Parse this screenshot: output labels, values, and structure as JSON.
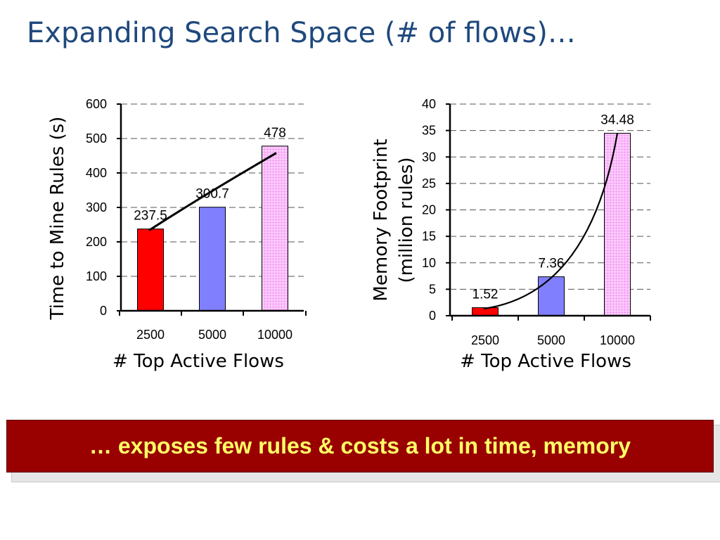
{
  "slide": {
    "title": "Expanding Search Space (# of flows)…",
    "banner": "… exposes few rules & costs a lot in time, memory"
  },
  "chart_data": [
    {
      "type": "bar",
      "categories": [
        "2500",
        "5000",
        "10000"
      ],
      "values": [
        237.5,
        300.7,
        478
      ],
      "data_labels": [
        "237.5",
        "300.7",
        "478"
      ],
      "xlabel": "# Top Active Flows",
      "ylabel": "Time to Mine Rules (s)",
      "ylim": [
        0,
        600
      ],
      "yticks": [
        "0",
        "100",
        "200",
        "300",
        "400",
        "500",
        "600"
      ],
      "grid": "horizontal dashed",
      "bar_colors": [
        "#ff0000",
        "#8080ff",
        "#ffccff"
      ],
      "trend_line": true
    },
    {
      "type": "bar",
      "categories": [
        "2500",
        "5000",
        "10000"
      ],
      "values": [
        1.52,
        7.36,
        34.48
      ],
      "data_labels": [
        "1.52",
        "7.36",
        "34.48"
      ],
      "xlabel": "# Top Active Flows",
      "ylabel_lines": [
        "Memory Footprint",
        "(million rules)"
      ],
      "ylim": [
        0,
        40
      ],
      "yticks": [
        "0",
        "5",
        "10",
        "15",
        "20",
        "25",
        "30",
        "35",
        "40"
      ],
      "grid": "horizontal dashed",
      "bar_colors": [
        "#ff0000",
        "#8080ff",
        "#ffccff"
      ],
      "trend_line": true
    }
  ]
}
